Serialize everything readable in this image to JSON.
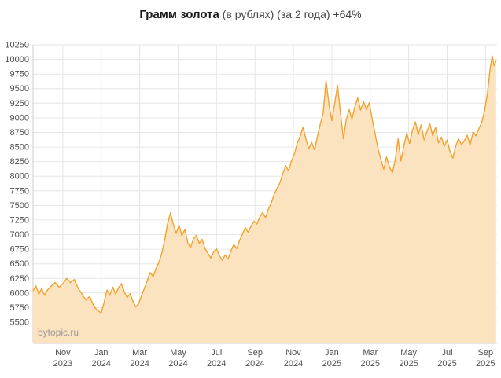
{
  "title": {
    "main": "Грамм золота",
    "suffix": " (в рублях) (за 2 года) +64%"
  },
  "watermark": "bytopic.ru",
  "chart_data": {
    "type": "area",
    "title": "Грамм золота (в рублях) (за 2 года) +64%",
    "xlabel": "",
    "ylabel": "",
    "grid": true,
    "legend": "none",
    "ylim": [
      5500,
      10250
    ],
    "y_tick_step": 250,
    "y_ticks": [
      5500,
      5750,
      6000,
      6250,
      6500,
      6750,
      7000,
      7250,
      7500,
      7750,
      8000,
      8250,
      8500,
      8750,
      9000,
      9250,
      9500,
      9750,
      10000,
      10250
    ],
    "xlim": [
      -0.55,
      23.6
    ],
    "x_encoding": "months, 0 = Oct 2023",
    "x_ticks": [
      {
        "x": 1,
        "month": "Nov",
        "year": "2023"
      },
      {
        "x": 3,
        "month": "Jan",
        "year": "2024"
      },
      {
        "x": 5,
        "month": "Mar",
        "year": "2024"
      },
      {
        "x": 7,
        "month": "May",
        "year": "2024"
      },
      {
        "x": 9,
        "month": "Jul",
        "year": "2024"
      },
      {
        "x": 11,
        "month": "Sep",
        "year": "2024"
      },
      {
        "x": 13,
        "month": "Nov",
        "year": "2024"
      },
      {
        "x": 15,
        "month": "Jan",
        "year": "2025"
      },
      {
        "x": 17,
        "month": "Mar",
        "year": "2025"
      },
      {
        "x": 19,
        "month": "May",
        "year": "2025"
      },
      {
        "x": 21,
        "month": "Jul",
        "year": "2025"
      },
      {
        "x": 23,
        "month": "Sep",
        "year": "2025"
      }
    ],
    "series": [
      {
        "name": "Грамм золота, руб.",
        "points": [
          [
            -0.55,
            6040
          ],
          [
            -0.4,
            6120
          ],
          [
            -0.25,
            5980
          ],
          [
            -0.1,
            6080
          ],
          [
            0.05,
            5960
          ],
          [
            0.2,
            6050
          ],
          [
            0.4,
            6120
          ],
          [
            0.6,
            6180
          ],
          [
            0.8,
            6100
          ],
          [
            1.0,
            6160
          ],
          [
            1.2,
            6250
          ],
          [
            1.4,
            6180
          ],
          [
            1.6,
            6230
          ],
          [
            1.8,
            6080
          ],
          [
            2.0,
            5980
          ],
          [
            2.2,
            5880
          ],
          [
            2.4,
            5940
          ],
          [
            2.6,
            5780
          ],
          [
            2.8,
            5700
          ],
          [
            3.0,
            5660
          ],
          [
            3.15,
            5840
          ],
          [
            3.3,
            6050
          ],
          [
            3.45,
            5960
          ],
          [
            3.6,
            6100
          ],
          [
            3.75,
            5980
          ],
          [
            3.9,
            6090
          ],
          [
            4.05,
            6160
          ],
          [
            4.2,
            6020
          ],
          [
            4.35,
            5920
          ],
          [
            4.5,
            5990
          ],
          [
            4.65,
            5860
          ],
          [
            4.8,
            5760
          ],
          [
            4.95,
            5820
          ],
          [
            5.1,
            5960
          ],
          [
            5.25,
            6080
          ],
          [
            5.4,
            6220
          ],
          [
            5.55,
            6350
          ],
          [
            5.7,
            6280
          ],
          [
            5.85,
            6420
          ],
          [
            6.0,
            6520
          ],
          [
            6.15,
            6680
          ],
          [
            6.3,
            6900
          ],
          [
            6.45,
            7180
          ],
          [
            6.6,
            7370
          ],
          [
            6.75,
            7180
          ],
          [
            6.9,
            7020
          ],
          [
            7.05,
            7160
          ],
          [
            7.2,
            6980
          ],
          [
            7.35,
            7090
          ],
          [
            7.5,
            6860
          ],
          [
            7.65,
            6780
          ],
          [
            7.8,
            6930
          ],
          [
            7.95,
            6990
          ],
          [
            8.1,
            6850
          ],
          [
            8.25,
            6920
          ],
          [
            8.4,
            6760
          ],
          [
            8.55,
            6680
          ],
          [
            8.7,
            6600
          ],
          [
            8.85,
            6700
          ],
          [
            9.0,
            6760
          ],
          [
            9.15,
            6640
          ],
          [
            9.3,
            6560
          ],
          [
            9.45,
            6650
          ],
          [
            9.6,
            6580
          ],
          [
            9.75,
            6720
          ],
          [
            9.9,
            6830
          ],
          [
            10.05,
            6760
          ],
          [
            10.2,
            6900
          ],
          [
            10.35,
            7010
          ],
          [
            10.5,
            7120
          ],
          [
            10.65,
            7040
          ],
          [
            10.8,
            7150
          ],
          [
            10.95,
            7230
          ],
          [
            11.1,
            7180
          ],
          [
            11.25,
            7300
          ],
          [
            11.4,
            7380
          ],
          [
            11.55,
            7290
          ],
          [
            11.7,
            7440
          ],
          [
            11.85,
            7540
          ],
          [
            12.0,
            7690
          ],
          [
            12.15,
            7790
          ],
          [
            12.3,
            7890
          ],
          [
            12.45,
            8040
          ],
          [
            12.6,
            8180
          ],
          [
            12.75,
            8090
          ],
          [
            12.9,
            8260
          ],
          [
            13.05,
            8380
          ],
          [
            13.2,
            8560
          ],
          [
            13.35,
            8680
          ],
          [
            13.5,
            8840
          ],
          [
            13.65,
            8640
          ],
          [
            13.8,
            8470
          ],
          [
            13.95,
            8580
          ],
          [
            14.1,
            8450
          ],
          [
            14.25,
            8680
          ],
          [
            14.4,
            8890
          ],
          [
            14.55,
            9080
          ],
          [
            14.7,
            9640
          ],
          [
            14.85,
            9240
          ],
          [
            15.0,
            8950
          ],
          [
            15.15,
            9250
          ],
          [
            15.3,
            9560
          ],
          [
            15.45,
            9080
          ],
          [
            15.6,
            8640
          ],
          [
            15.75,
            8960
          ],
          [
            15.9,
            9140
          ],
          [
            16.05,
            8980
          ],
          [
            16.2,
            9190
          ],
          [
            16.35,
            9340
          ],
          [
            16.5,
            9130
          ],
          [
            16.65,
            9280
          ],
          [
            16.8,
            9140
          ],
          [
            16.95,
            9260
          ],
          [
            17.1,
            8980
          ],
          [
            17.25,
            8730
          ],
          [
            17.4,
            8480
          ],
          [
            17.55,
            8290
          ],
          [
            17.7,
            8120
          ],
          [
            17.85,
            8330
          ],
          [
            18.0,
            8160
          ],
          [
            18.15,
            8060
          ],
          [
            18.3,
            8280
          ],
          [
            18.45,
            8640
          ],
          [
            18.6,
            8260
          ],
          [
            18.75,
            8520
          ],
          [
            18.9,
            8740
          ],
          [
            19.05,
            8560
          ],
          [
            19.2,
            8790
          ],
          [
            19.35,
            8930
          ],
          [
            19.5,
            8710
          ],
          [
            19.65,
            8880
          ],
          [
            19.8,
            8620
          ],
          [
            19.95,
            8760
          ],
          [
            20.1,
            8900
          ],
          [
            20.25,
            8690
          ],
          [
            20.4,
            8840
          ],
          [
            20.55,
            8570
          ],
          [
            20.7,
            8670
          ],
          [
            20.85,
            8510
          ],
          [
            21.0,
            8620
          ],
          [
            21.15,
            8430
          ],
          [
            21.3,
            8310
          ],
          [
            21.45,
            8520
          ],
          [
            21.6,
            8640
          ],
          [
            21.75,
            8540
          ],
          [
            21.9,
            8610
          ],
          [
            22.05,
            8700
          ],
          [
            22.2,
            8530
          ],
          [
            22.35,
            8760
          ],
          [
            22.5,
            8690
          ],
          [
            22.65,
            8810
          ],
          [
            22.8,
            8920
          ],
          [
            22.95,
            9120
          ],
          [
            23.1,
            9420
          ],
          [
            23.25,
            9860
          ],
          [
            23.35,
            10060
          ],
          [
            23.45,
            9890
          ],
          [
            23.55,
            9980
          ]
        ]
      }
    ],
    "colors": {
      "line": "#f2a22d",
      "fill": "#fce3c0",
      "grid": "#e6e6e6",
      "axis": "#cccccc",
      "tick_text": "#4d4d4d",
      "watermark": "#999999"
    }
  }
}
